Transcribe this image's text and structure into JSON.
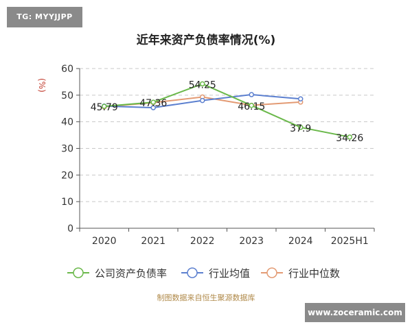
{
  "badge": "TG: MYYJJPP",
  "watermark": "www.zoceramic.com",
  "source": "制图数据来自恒生聚源数据库",
  "chart_data": {
    "type": "line",
    "title": "近年来资产负债率情况(%)",
    "ylabel": "(%)",
    "categories": [
      "2020",
      "2021",
      "2022",
      "2023",
      "2024",
      "2025H1"
    ],
    "ylim": [
      0,
      60
    ],
    "yticks": [
      0,
      10,
      20,
      30,
      40,
      50,
      60
    ],
    "grid": true,
    "legend_position": "bottom",
    "series": [
      {
        "name": "公司资产负债率",
        "color": "#6ab84a",
        "values": [
          45.79,
          47.36,
          54.25,
          46.15,
          37.9,
          34.26
        ],
        "labels": [
          "45.79",
          "47.36",
          "54.25",
          "46.15",
          "37.9",
          "34.26"
        ]
      },
      {
        "name": "行业均值",
        "color": "#5b7fcf",
        "values": [
          45.9,
          45.3,
          48.0,
          50.2,
          48.6,
          null
        ]
      },
      {
        "name": "行业中位数",
        "color": "#e39a73",
        "values": [
          45.6,
          47.2,
          49.3,
          46.2,
          47.4,
          null
        ]
      }
    ]
  }
}
